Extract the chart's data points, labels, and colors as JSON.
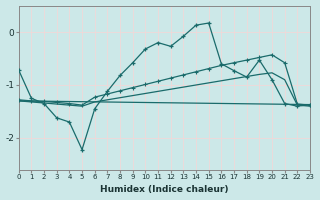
{
  "xlabel": "Humidex (Indice chaleur)",
  "bg_color": "#cce8e8",
  "grid_color": "#f0d8d8",
  "line_color": "#1a6b6b",
  "xlim": [
    0,
    23
  ],
  "ylim": [
    -2.6,
    0.5
  ],
  "yticks": [
    0,
    -1,
    -2
  ],
  "xticks": [
    0,
    1,
    2,
    3,
    4,
    5,
    6,
    7,
    8,
    9,
    10,
    11,
    12,
    13,
    14,
    15,
    16,
    17,
    18,
    19,
    20,
    21,
    22,
    23
  ],
  "curve1_x": [
    0,
    1,
    2,
    3,
    4,
    5,
    6,
    7,
    8,
    9,
    10,
    11,
    12,
    13,
    14,
    15,
    16,
    17,
    18,
    19,
    20,
    21,
    22,
    23
  ],
  "curve1_y": [
    -0.72,
    -1.25,
    -1.35,
    -1.62,
    -1.7,
    -2.22,
    -1.45,
    -1.12,
    -0.82,
    -0.58,
    -0.32,
    -0.2,
    -0.27,
    -0.08,
    0.13,
    0.17,
    -0.6,
    -0.73,
    -0.85,
    -0.53,
    -0.9,
    -1.35,
    -1.4,
    -1.37
  ],
  "curve2_x": [
    0,
    1,
    2,
    3,
    4,
    5,
    6,
    7,
    8,
    9,
    10,
    11,
    12,
    13,
    14,
    15,
    16,
    17,
    18,
    19,
    20,
    21,
    22,
    23
  ],
  "curve2_y": [
    -1.28,
    -1.3,
    -1.31,
    -1.33,
    -1.35,
    -1.38,
    -1.23,
    -1.17,
    -1.11,
    -1.05,
    -0.99,
    -0.93,
    -0.87,
    -0.81,
    -0.75,
    -0.69,
    -0.63,
    -0.58,
    -0.53,
    -0.48,
    -0.43,
    -0.58,
    -1.36,
    -1.38
  ],
  "curve3_x": [
    0,
    1,
    2,
    3,
    4,
    5,
    6,
    7,
    8,
    9,
    10,
    11,
    12,
    13,
    14,
    15,
    16,
    17,
    18,
    19,
    20,
    21,
    22,
    23
  ],
  "curve3_y": [
    -1.3,
    -1.32,
    -1.34,
    -1.36,
    -1.38,
    -1.4,
    -1.32,
    -1.28,
    -1.24,
    -1.2,
    -1.16,
    -1.12,
    -1.08,
    -1.04,
    -1.0,
    -0.96,
    -0.92,
    -0.88,
    -0.84,
    -0.8,
    -0.77,
    -0.9,
    -1.38,
    -1.4
  ],
  "curve4_x": [
    0,
    23
  ],
  "curve4_y": [
    -1.3,
    -1.37
  ]
}
